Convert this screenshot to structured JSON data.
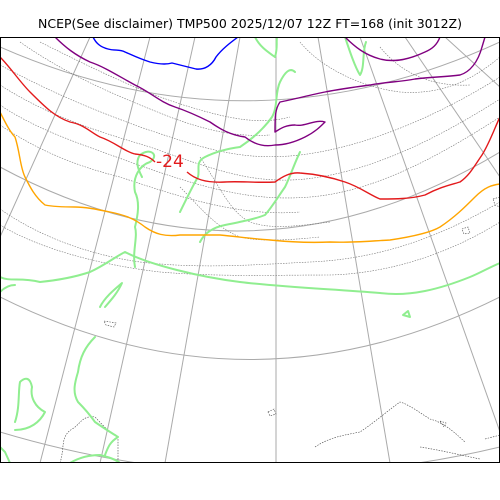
{
  "title": "NCEP(See disclaimer) TMP500 2025/12/07 12Z FT=168 (init 3012Z)",
  "contour_label": "-24",
  "colors": {
    "contour_minus24": "#e31a1c",
    "contour_warm": "#ffa500",
    "contour_cold": "#800080",
    "contour_coldest": "#0000ff",
    "contour_zero": "#90ee90",
    "coastline": "#444444",
    "graticule": "#aaaaaa"
  }
}
